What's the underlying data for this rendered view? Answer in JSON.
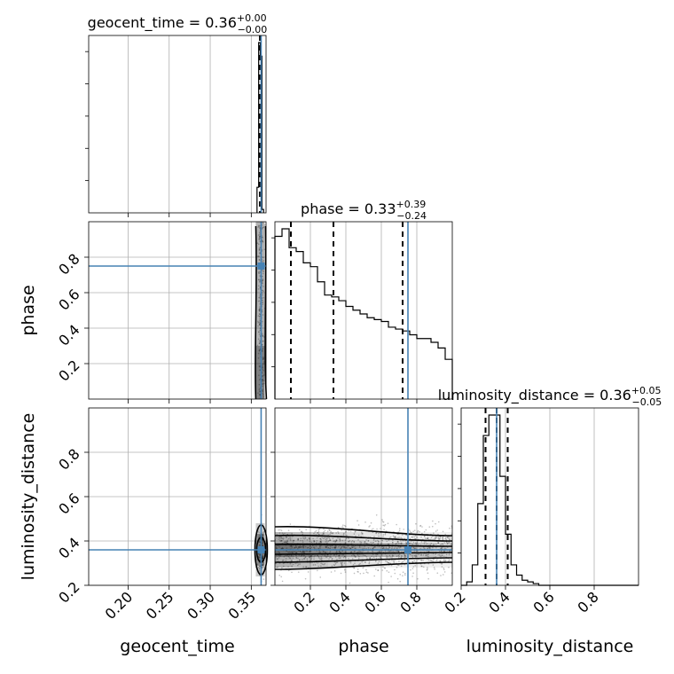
{
  "chart_data": {
    "type": "corner",
    "parameters": [
      "geocent_time",
      "phase",
      "luminosity_distance"
    ],
    "axis_labels": {
      "geocent_time": "geocent_time",
      "phase": "phase",
      "luminosity_distance": "luminosity_distance"
    },
    "ranges": {
      "geocent_time": [
        0.152,
        0.368
      ],
      "phase": [
        0.0,
        1.0
      ],
      "luminosity_distance": [
        0.2,
        1.0
      ]
    },
    "ticks": {
      "geocent_time": [
        "0.20",
        "0.25",
        "0.30",
        "0.35"
      ],
      "phase": [
        "0.2",
        "0.4",
        "0.6",
        "0.8"
      ],
      "luminosity_distance": [
        "0.2",
        "0.4",
        "0.6",
        "0.8"
      ]
    },
    "titles": {
      "geocent_time": {
        "name": "geocent_time",
        "value": "0.36",
        "plus": "+0.00",
        "minus": "−0.00"
      },
      "phase": {
        "name": "phase",
        "value": "0.33",
        "plus": "+0.39",
        "minus": "−0.24"
      },
      "luminosity_distance": {
        "name": "luminosity_distance",
        "value": "0.36",
        "plus": "+0.05",
        "minus": "−0.05"
      }
    },
    "truths": {
      "geocent_time": 0.362,
      "phase": 0.75,
      "luminosity_distance": 0.36
    },
    "quantiles": {
      "geocent_time": [
        0.3605,
        0.361,
        0.3615
      ],
      "phase": [
        0.09,
        0.33,
        0.72
      ],
      "luminosity_distance": [
        0.31,
        0.36,
        0.41
      ]
    },
    "hist_1d": {
      "geocent_time": {
        "edges": [
          0.357,
          0.359,
          0.361,
          0.363,
          0.365
        ],
        "values": [
          0.15,
          1.0,
          0.92,
          0.02
        ]
      },
      "phase": {
        "edges": [
          0.0,
          0.04,
          0.08,
          0.12,
          0.16,
          0.2,
          0.24,
          0.28,
          0.32,
          0.36,
          0.4,
          0.44,
          0.48,
          0.52,
          0.56,
          0.6,
          0.64,
          0.68,
          0.72,
          0.76,
          0.8,
          0.84,
          0.88,
          0.92,
          0.96,
          1.0
        ],
        "values": [
          0.86,
          0.9,
          0.8,
          0.78,
          0.72,
          0.7,
          0.62,
          0.55,
          0.54,
          0.52,
          0.49,
          0.47,
          0.45,
          0.43,
          0.42,
          0.41,
          0.38,
          0.37,
          0.36,
          0.34,
          0.32,
          0.32,
          0.3,
          0.27,
          0.21
        ]
      },
      "luminosity_distance": {
        "edges": [
          0.2,
          0.225,
          0.25,
          0.275,
          0.3,
          0.325,
          0.35,
          0.375,
          0.4,
          0.425,
          0.45,
          0.475,
          0.5,
          0.525,
          0.55,
          0.575,
          0.6,
          1.0
        ],
        "values": [
          0.0,
          0.02,
          0.12,
          0.48,
          0.88,
          1.0,
          1.0,
          0.64,
          0.3,
          0.12,
          0.06,
          0.03,
          0.02,
          0.01,
          0.0,
          0.0,
          0.0
        ]
      }
    },
    "grid": true
  }
}
